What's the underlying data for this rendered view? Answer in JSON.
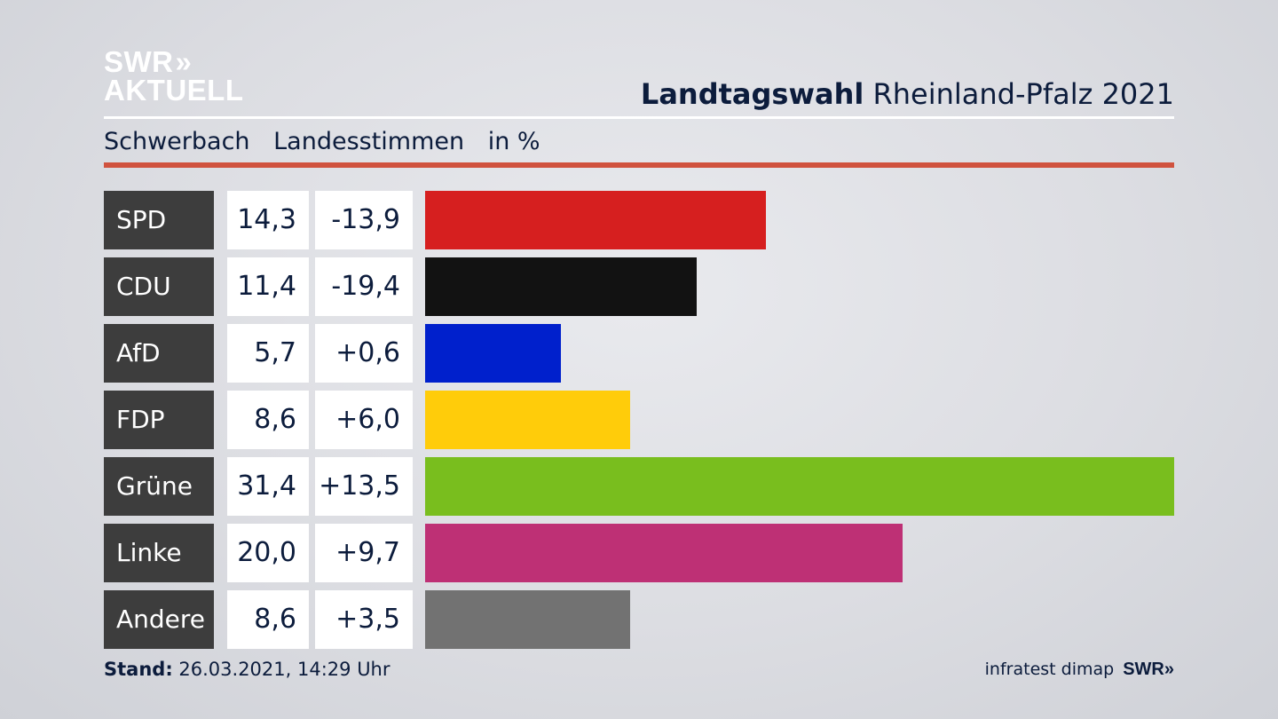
{
  "logo": {
    "line1": "SWR",
    "chevrons": "»",
    "line2": "AKTUELL"
  },
  "header": {
    "title_bold": "Landtagswahl",
    "title_rest": "Rheinland-Pfalz 2021"
  },
  "subheader": {
    "place": "Schwerbach",
    "vote_type": "Landesstimmen",
    "unit": "in %"
  },
  "chart_data": {
    "type": "bar",
    "orientation": "horizontal",
    "categories": [
      "SPD",
      "CDU",
      "AfD",
      "FDP",
      "Grüne",
      "Linke",
      "Andere"
    ],
    "values": [
      14.3,
      11.4,
      5.7,
      8.6,
      31.4,
      20.0,
      8.6
    ],
    "value_labels": [
      "14,3",
      "11,4",
      "5,7",
      "8,6",
      "31,4",
      "20,0",
      "8,6"
    ],
    "diff_labels": [
      "-13,9",
      "-19,4",
      "+0,6",
      "+6,0",
      "+13,5",
      "+9,7",
      "+3,5"
    ],
    "diffs": [
      -13.9,
      -19.4,
      0.6,
      6.0,
      13.5,
      9.7,
      3.5
    ],
    "colors": [
      "#d61f1f",
      "#121212",
      "#0020cc",
      "#ffcc0a",
      "#79be1e",
      "#be3075",
      "#727272"
    ],
    "xlim": [
      0,
      31.4
    ]
  },
  "footer": {
    "stand_label": "Stand:",
    "stand_value": "26.03.2021, 14:29 Uhr",
    "source": "infratest dimap",
    "brand": "SWR"
  }
}
